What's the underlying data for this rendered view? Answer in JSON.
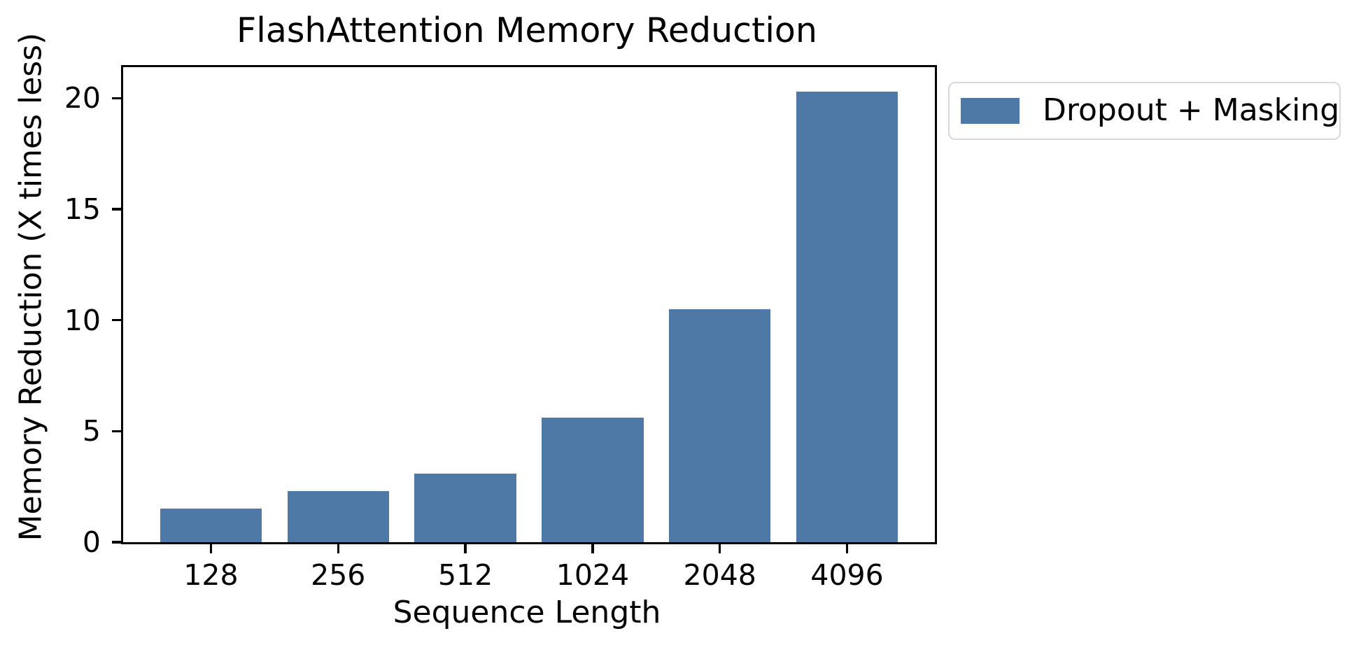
{
  "chart_data": {
    "type": "bar",
    "title": "FlashAttention Memory Reduction",
    "xlabel": "Sequence Length",
    "ylabel": "Memory Reduction (X times less)",
    "categories": [
      "128",
      "256",
      "512",
      "1024",
      "2048",
      "4096"
    ],
    "series": [
      {
        "name": "Dropout + Masking",
        "values": [
          1.5,
          2.3,
          3.1,
          5.6,
          10.5,
          20.3
        ]
      }
    ],
    "yticks": [
      0,
      5,
      10,
      15,
      20
    ],
    "ylim": [
      0,
      21.4
    ],
    "bar_color": "#4E79A7",
    "grid": false,
    "legend": {
      "position": "outside-top-right",
      "entries": [
        "Dropout + Masking"
      ]
    }
  }
}
